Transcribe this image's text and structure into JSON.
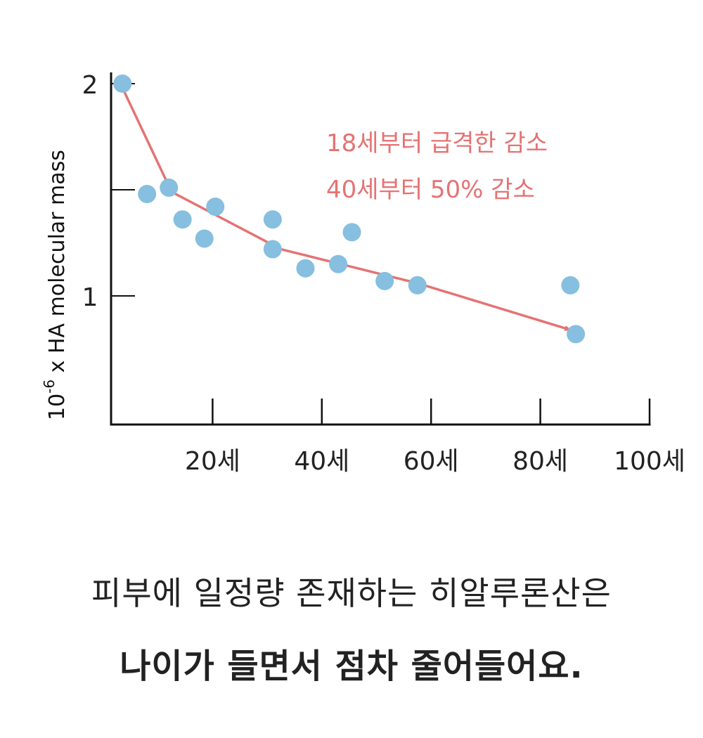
{
  "chart_data": {
    "type": "scatter",
    "ylabel_base": "10",
    "ylabel_exponent": "-6",
    "ylabel_rest": " x HA molecular mass",
    "xlabel": "",
    "xlim": [
      0,
      100
    ],
    "ylim": [
      0.4,
      2
    ],
    "x_ticks": [
      20,
      40,
      60,
      80,
      100
    ],
    "x_tick_labels": [
      "20세",
      "40세",
      "60세",
      "80세",
      "100세"
    ],
    "y_ticks": [
      1,
      1.5,
      2
    ],
    "y_tick_labels": [
      "1",
      "",
      "2"
    ],
    "points": [
      {
        "x": 3.5,
        "y": 2.0
      },
      {
        "x": 8,
        "y": 1.48
      },
      {
        "x": 12,
        "y": 1.51
      },
      {
        "x": 14.5,
        "y": 1.36
      },
      {
        "x": 18.5,
        "y": 1.27
      },
      {
        "x": 20.5,
        "y": 1.42
      },
      {
        "x": 31,
        "y": 1.36
      },
      {
        "x": 31,
        "y": 1.22
      },
      {
        "x": 37,
        "y": 1.13
      },
      {
        "x": 43,
        "y": 1.15
      },
      {
        "x": 45.5,
        "y": 1.3
      },
      {
        "x": 51.5,
        "y": 1.07
      },
      {
        "x": 57.5,
        "y": 1.05
      },
      {
        "x": 85.5,
        "y": 1.05
      },
      {
        "x": 86.5,
        "y": 0.82
      }
    ],
    "trend": [
      {
        "x": 3.5,
        "y": 1.98
      },
      {
        "x": 12.5,
        "y": 1.49
      },
      {
        "x": 32.5,
        "y": 1.22
      },
      {
        "x": 57.5,
        "y": 1.06
      },
      {
        "x": 85.5,
        "y": 0.84
      }
    ],
    "annotations": [
      "18세부터 급격한 감소",
      "40세부터 50% 감소"
    ],
    "colors": {
      "points": "#86bfdf",
      "trend": "#e57373",
      "axis": "#111111"
    }
  },
  "caption": {
    "line1": "피부에 일정량 존재하는 히알루론산은",
    "line2": "나이가 들면서 점차 줄어들어요."
  }
}
